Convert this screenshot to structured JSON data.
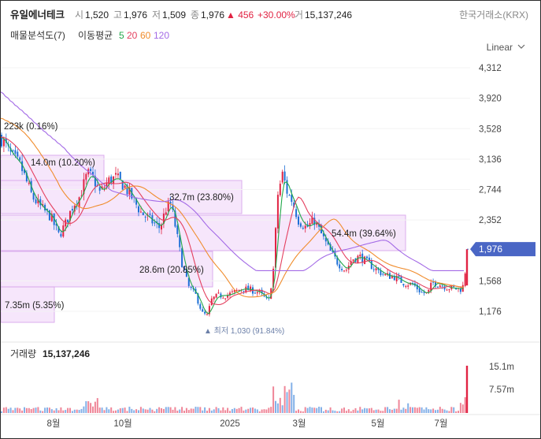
{
  "header": {
    "name": "유일에너테크",
    "open_label": "시",
    "open": "1,520",
    "high_label": "고",
    "high": "1,976",
    "low_label": "저",
    "low": "1,509",
    "close_label": "종",
    "close": "1,976",
    "change": "▲ 456",
    "change_pct": "+30.00%",
    "vol_label": "거",
    "volume": "15,137,246",
    "exchange": "한국거래소(KRX)"
  },
  "indicators": {
    "vp_label": "매물분석도(7)",
    "ma_label": "이동평균",
    "ma": [
      {
        "period": "5",
        "color": "#22a84a"
      },
      {
        "period": "20",
        "color": "#e4405f"
      },
      {
        "period": "60",
        "color": "#f08c2c"
      },
      {
        "period": "120",
        "color": "#a36ae6"
      }
    ]
  },
  "scale_label": "Linear",
  "colors": {
    "up": "#e12343",
    "down": "#1d6fd6",
    "price_tag": "#4a66c5",
    "vp_fill": "#f6e4fb",
    "vp_stroke": "#d8a6eb"
  },
  "volume_panel": {
    "label": "거래량",
    "value": "15,137,246",
    "ticks": [
      "15.1m",
      "7.57m"
    ]
  },
  "min_marker": "▲ 최저 1,030 (91.84%)",
  "price_tag": "1,976",
  "chart_data": {
    "type": "candlestick",
    "price_axis": {
      "ticks": [
        "4,312",
        "3,920",
        "3,528",
        "3,136",
        "2,744",
        "2,352",
        "1,568",
        "1,176"
      ],
      "range": [
        950,
        4400
      ]
    },
    "x_ticks": [
      "8월",
      "10월",
      "2025",
      "3월",
      "5월",
      "7월"
    ],
    "volume_profile": [
      {
        "label": "223k (0.16%)"
      },
      {
        "label": "14.0m (10.20%)"
      },
      {
        "label": "32.7m (23.80%)"
      },
      {
        "label": "54.4m (39.64%)"
      },
      {
        "label": "28.6m (20.85%)"
      },
      {
        "label": "7.35m (5.35%)"
      }
    ],
    "last_close": 1976,
    "min_low": 1030
  }
}
